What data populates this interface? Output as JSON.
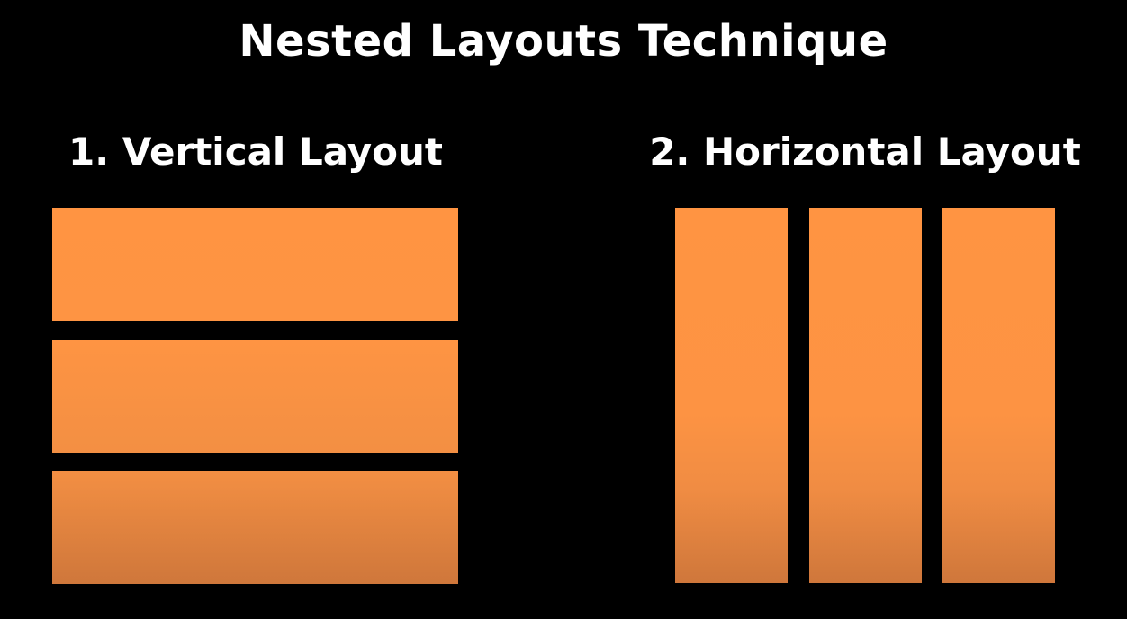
{
  "title": "Nested Layouts Technique",
  "sections": [
    {
      "label": "1. Vertical Layout",
      "blocks": 3
    },
    {
      "label": "2. Horizontal Layout",
      "blocks": 3
    }
  ],
  "colors": {
    "background": "#000000",
    "block_top": "#ff9442",
    "block_bottom": "#cf773b",
    "text": "#ffffff"
  }
}
